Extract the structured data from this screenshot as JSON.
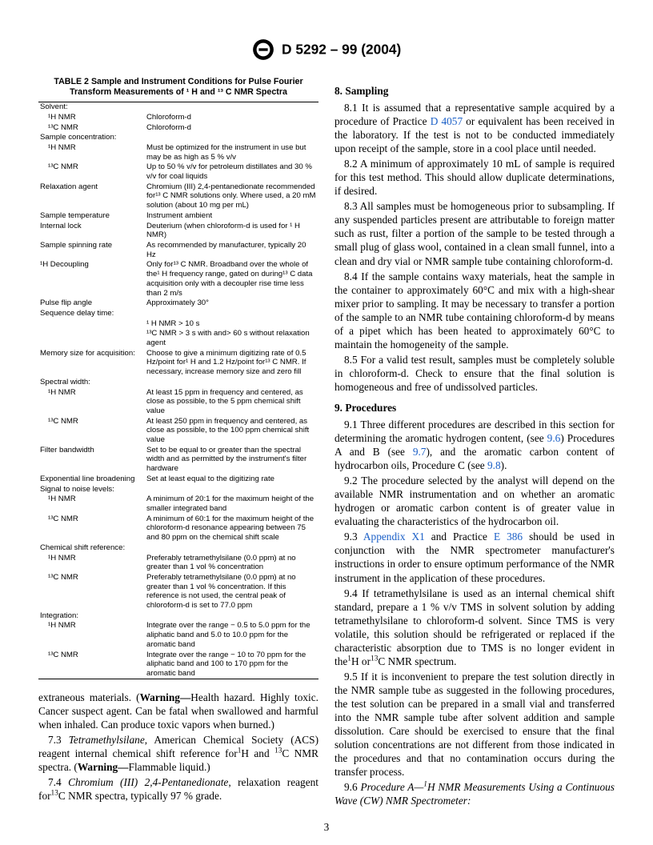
{
  "header": {
    "doc_id": "D 5292 – 99 (2004)"
  },
  "table": {
    "title_line1": "TABLE 2  Sample and Instrument Conditions for Pulse Fourier",
    "title_line2": "Transform Measurements of ¹ H and ¹³ C NMR Spectra",
    "rows": [
      {
        "label": "Solvent:",
        "value": ""
      },
      {
        "label": "¹H NMR",
        "value": "Chloroform-d",
        "sub": true
      },
      {
        "label": "¹³C NMR",
        "value": "Chloroform-d",
        "sub": true
      },
      {
        "label": "Sample concentration:",
        "value": ""
      },
      {
        "label": "¹H NMR",
        "value": "Must be optimized for the instrument in use but may be as high as 5 % v/v",
        "sub": true
      },
      {
        "label": "¹³C NMR",
        "value": "Up to 50 % v/v for petroleum distillates and 30 % v/v for coal liquids",
        "sub": true
      },
      {
        "label": "Relaxation agent",
        "value": "Chromium (III) 2,4-pentanedionate recommended for¹³ C NMR solutions only. Where used, a 20 mM solution (about 10 mg per mL)"
      },
      {
        "label": "Sample temperature",
        "value": "Instrument ambient"
      },
      {
        "label": "Internal lock",
        "value": "Deuterium (when chloroform-d is used for ¹ H NMR)"
      },
      {
        "label": "Sample spinning rate",
        "value": "As recommended by manufacturer, typically 20 Hz"
      },
      {
        "label": "¹H Decoupling",
        "value": "Only for¹³ C NMR. Broadband over the whole of the¹ H frequency range, gated on during¹³ C data acquisition only with a decoupler rise time less than 2 m/s"
      },
      {
        "label": "Pulse flip angle",
        "value": "Approximately 30°"
      },
      {
        "label": "Sequence delay time:",
        "value": ""
      },
      {
        "label": "",
        "value": "¹ H NMR > 10 s",
        "sub": true
      },
      {
        "label": "",
        "value": "¹³C NMR > 3 s with and> 60 s without relaxation agent",
        "sub": true
      },
      {
        "label": "Memory size for acquisition:",
        "value": "Choose to give a minimum digitizing rate of 0.5 Hz/point for¹ H and 1.2 Hz/point for¹³ C NMR. If necessary, increase memory size and zero fill"
      },
      {
        "label": "Spectral width:",
        "value": ""
      },
      {
        "label": "¹H NMR",
        "value": "At least 15 ppm in frequency and centered, as close as possible, to the 5 ppm chemical shift value",
        "sub": true
      },
      {
        "label": "¹³C NMR",
        "value": "At least 250 ppm in frequency and centered, as close as possible, to the 100 ppm chemical shift value",
        "sub": true
      },
      {
        "label": "Filter bandwidth",
        "value": "Set to be equal to or greater than the spectral width and as permitted by the instrument's filter hardware"
      },
      {
        "label": "Exponential line broadening",
        "value": "Set at least equal to the digitizing rate"
      },
      {
        "label": "Signal to noise levels:",
        "value": ""
      },
      {
        "label": "¹H NMR",
        "value": "A minimum of 20:1 for the maximum height of the smaller integrated band",
        "sub": true
      },
      {
        "label": "¹³C NMR",
        "value": "A minimum of 60:1 for the maximum height of the chloroform-d resonance appearing between 75 and 80 ppm on the chemical shift scale",
        "sub": true
      },
      {
        "label": "Chemical shift reference:",
        "value": ""
      },
      {
        "label": "¹H NMR",
        "value": "Preferably tetramethylsilane (0.0 ppm) at no greater than 1 vol % concentration",
        "sub": true
      },
      {
        "label": "¹³C NMR",
        "value": "Preferably tetramethylsilane (0.0 ppm) at no greater than 1 vol % concentration. If this reference is not used, the central peak of chloroform-d is set to 77.0 ppm",
        "sub": true
      },
      {
        "label": "Integration:",
        "value": ""
      },
      {
        "label": "¹H NMR",
        "value": "Integrate over the range − 0.5 to 5.0 ppm for the aliphatic band and 5.0 to 10.0 ppm for the aromatic band",
        "sub": true
      },
      {
        "label": "¹³C NMR",
        "value": "Integrate over the range − 10 to 70 ppm for the aliphatic band and 100 to 170 ppm for the aromatic band",
        "sub": true
      }
    ]
  },
  "left_paragraphs": {
    "p1": "extraneous materials. (Warning—Health hazard. Highly toxic. Cancer suspect agent. Can be fatal when swallowed and harmful when inhaled. Can produce toxic vapors when burned.)",
    "p2a": "7.3 ",
    "p2b": "Tetramethylsilane",
    "p2c": ", American Chemical Society (ACS) reagent internal chemical shift reference for¹H and ¹³C NMR spectra. (Warning—Flammable liquid.)",
    "p3a": "7.4 ",
    "p3b": "Chromium (III) 2,4-Pentanedionate",
    "p3c": ", relaxation reagent for¹³C NMR spectra, typically 97 % grade."
  },
  "right": {
    "s8_title": "8.  Sampling",
    "p81a": "8.1  It is assumed that a representative sample acquired by a procedure of Practice ",
    "p81_link": "D 4057",
    "p81b": " or equivalent has been received in the laboratory. If the test is not to be conducted immediately upon receipt of the sample, store in a cool place until needed.",
    "p82": "8.2 A minimum of approximately 10 mL of sample is required for this test method. This should allow duplicate determinations, if desired.",
    "p83": "8.3 All samples must be homogeneous prior to subsampling. If any suspended particles present are attributable to foreign matter such as rust, filter a portion of the sample to be tested through a small plug of glass wool, contained in a clean small funnel, into a clean and dry vial or NMR sample tube containing chloroform-d.",
    "p84": "8.4  If the sample contains waxy materials, heat the sample in the container to approximately 60°C and mix with a high-shear mixer prior to sampling. It may be necessary to transfer a portion of the sample to an NMR tube containing chloroform-d by means of a pipet which has been heated to approximately 60°C to maintain the homogeneity of the sample.",
    "p85": "8.5 For a valid test result, samples must be completely soluble in chloroform-d. Check to ensure that the final solution is homogeneous and free of undissolved particles.",
    "s9_title": "9.  Procedures",
    "p91a": "9.1  Three different procedures are described in this section for determining the aromatic hydrogen content, (see ",
    "p91_link1": "9.6",
    "p91b": ") Procedures A and B (see ",
    "p91_link2": "9.7",
    "p91c": "), and the aromatic carbon content of hydrocarbon oils, Procedure C (see ",
    "p91_link3": "9.8",
    "p91d": ").",
    "p92": "9.2  The procedure selected by the analyst will depend on the available NMR instrumentation and on whether an aromatic hydrogen or aromatic carbon content is of greater value in evaluating the characteristics of the hydrocarbon oil.",
    "p93a": "9.3 ",
    "p93_link1": "Appendix X1",
    "p93b": " and Practice ",
    "p93_link2": "E 386",
    "p93c": " should be used in conjunction with the NMR spectrometer manufacturer's instructions in order to ensure optimum performance of the NMR instrument in the application of these procedures.",
    "p94": "9.4  If tetramethylsilane is used as an internal chemical shift standard, prepare a 1 % v/v TMS in solvent solution by adding tetramethylsilane to chloroform-d solvent. Since TMS is very volatile, this solution should be refrigerated or replaced if the characteristic absorption due to TMS is no longer evident in the¹H or¹³C NMR spectrum.",
    "p95": "9.5  If it is inconvenient to prepare the test solution directly in the NMR sample tube as suggested in the following procedures, the test solution can be prepared in a small vial and transferred into the NMR sample tube after solvent addition and sample dissolution. Care should be exercised to ensure that the final solution concentrations are not different from those indicated in the procedures and that no contamination occurs during the transfer process.",
    "p96a": "9.6 ",
    "p96b": "Procedure A—¹H NMR Measurements Using a Continuous Wave (CW) NMR Spectrometer:"
  },
  "page_number": "3"
}
